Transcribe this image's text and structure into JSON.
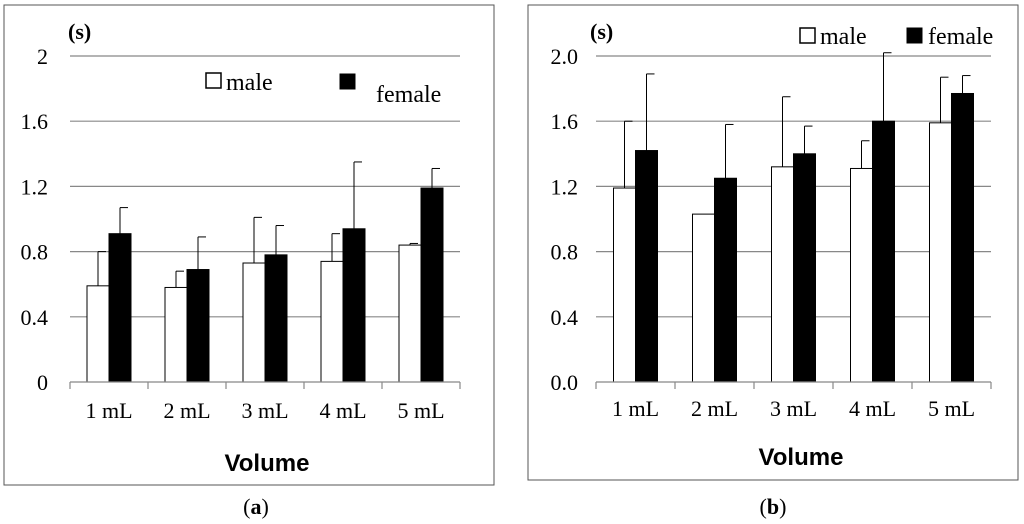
{
  "chart_data": [
    {
      "type": "bar",
      "panel": "a",
      "panel_label": "a",
      "unit_label": "(s)",
      "xlabel": "Volume",
      "categories": [
        "1 mL",
        "2 mL",
        "3 mL",
        "4 mL",
        "5 mL"
      ],
      "yticks": [
        "0",
        "0.4",
        "0.8",
        "1.2",
        "1.6",
        "2"
      ],
      "ylim": [
        0,
        2
      ],
      "legend_position": "top",
      "series": [
        {
          "name": "male",
          "color": "#ffffff",
          "values": [
            0.59,
            0.58,
            0.73,
            0.74,
            0.84
          ],
          "errors": [
            0.21,
            0.1,
            0.28,
            0.17,
            0.01
          ]
        },
        {
          "name": "female",
          "color": "#000000",
          "values": [
            0.91,
            0.69,
            0.78,
            0.94,
            1.19
          ],
          "errors": [
            0.16,
            0.2,
            0.18,
            0.41,
            0.12
          ]
        }
      ]
    },
    {
      "type": "bar",
      "panel": "b",
      "panel_label": "b",
      "unit_label": "(s)",
      "xlabel": "Volume",
      "categories": [
        "1 mL",
        "2 mL",
        "3 mL",
        "4 mL",
        "5 mL"
      ],
      "yticks": [
        "0.0",
        "0.4",
        "0.8",
        "1.2",
        "1.6",
        "2.0"
      ],
      "ylim": [
        0,
        2
      ],
      "legend_position": "top-right",
      "series": [
        {
          "name": "male",
          "color": "#ffffff",
          "values": [
            1.19,
            1.03,
            1.32,
            1.31,
            1.59
          ],
          "errors": [
            0.41,
            0.0,
            0.43,
            0.17,
            0.28
          ]
        },
        {
          "name": "female",
          "color": "#000000",
          "values": [
            1.42,
            1.25,
            1.4,
            1.6,
            1.77
          ],
          "errors": [
            0.47,
            0.33,
            0.17,
            0.42,
            0.11
          ]
        }
      ]
    }
  ]
}
